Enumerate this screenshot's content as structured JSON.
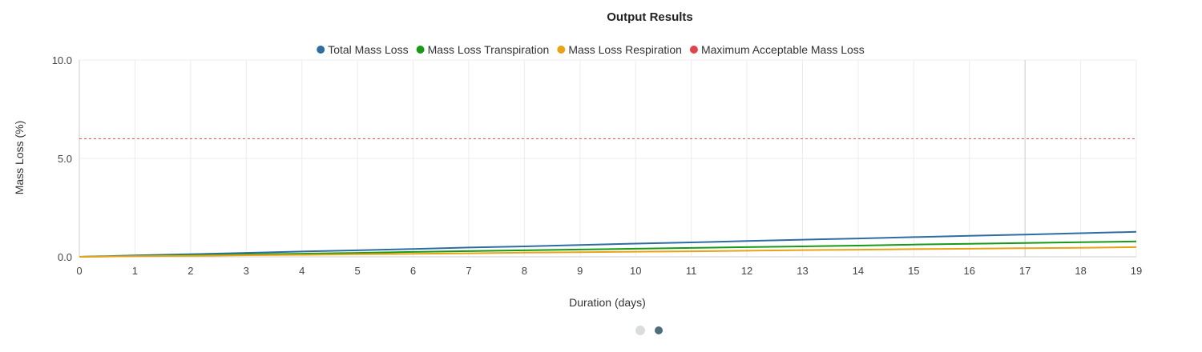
{
  "chart_data": {
    "type": "line",
    "title": "Output Results",
    "xlabel": "Duration (days)",
    "ylabel": "Mass Loss (%)",
    "xlim": [
      0,
      19
    ],
    "ylim": [
      0,
      10
    ],
    "x_ticks": [
      "0",
      "1",
      "2",
      "3",
      "4",
      "5",
      "6",
      "7",
      "8",
      "9",
      "10",
      "11",
      "12",
      "13",
      "14",
      "15",
      "16",
      "17",
      "18",
      "19"
    ],
    "y_ticks": [
      {
        "value": 0,
        "label": "0.0"
      },
      {
        "value": 5,
        "label": "5.0"
      },
      {
        "value": 10,
        "label": "10.0"
      }
    ],
    "x": [
      0,
      1,
      2,
      3,
      4,
      5,
      6,
      7,
      8,
      9,
      10,
      11,
      12,
      13,
      14,
      15,
      16,
      17,
      18,
      19
    ],
    "series": [
      {
        "name": "Total Mass Loss",
        "color": "#2e6da4",
        "style": "solid",
        "values": [
          0,
          0.07,
          0.13,
          0.2,
          0.27,
          0.33,
          0.4,
          0.47,
          0.53,
          0.6,
          0.67,
          0.73,
          0.8,
          0.87,
          0.93,
          1.0,
          1.07,
          1.13,
          1.2,
          1.27
        ]
      },
      {
        "name": "Mass Loss Transpiration",
        "color": "#179b17",
        "style": "solid",
        "values": [
          0,
          0.04,
          0.08,
          0.12,
          0.16,
          0.2,
          0.25,
          0.29,
          0.33,
          0.37,
          0.41,
          0.45,
          0.49,
          0.53,
          0.57,
          0.62,
          0.66,
          0.7,
          0.74,
          0.78
        ]
      },
      {
        "name": "Mass Loss Respiration",
        "color": "#e8a317",
        "style": "solid",
        "values": [
          0,
          0.03,
          0.05,
          0.08,
          0.1,
          0.13,
          0.15,
          0.18,
          0.21,
          0.23,
          0.26,
          0.28,
          0.31,
          0.34,
          0.36,
          0.39,
          0.41,
          0.44,
          0.46,
          0.49
        ]
      },
      {
        "name": "Maximum Acceptable Mass Loss",
        "color": "#e0434b",
        "style": "dashed",
        "values": [
          6,
          6,
          6,
          6,
          6,
          6,
          6,
          6,
          6,
          6,
          6,
          6,
          6,
          6,
          6,
          6,
          6,
          6,
          6,
          6
        ]
      }
    ],
    "legend_position": "top-center",
    "grid": true
  },
  "pager": {
    "count": 2,
    "active": 2
  }
}
